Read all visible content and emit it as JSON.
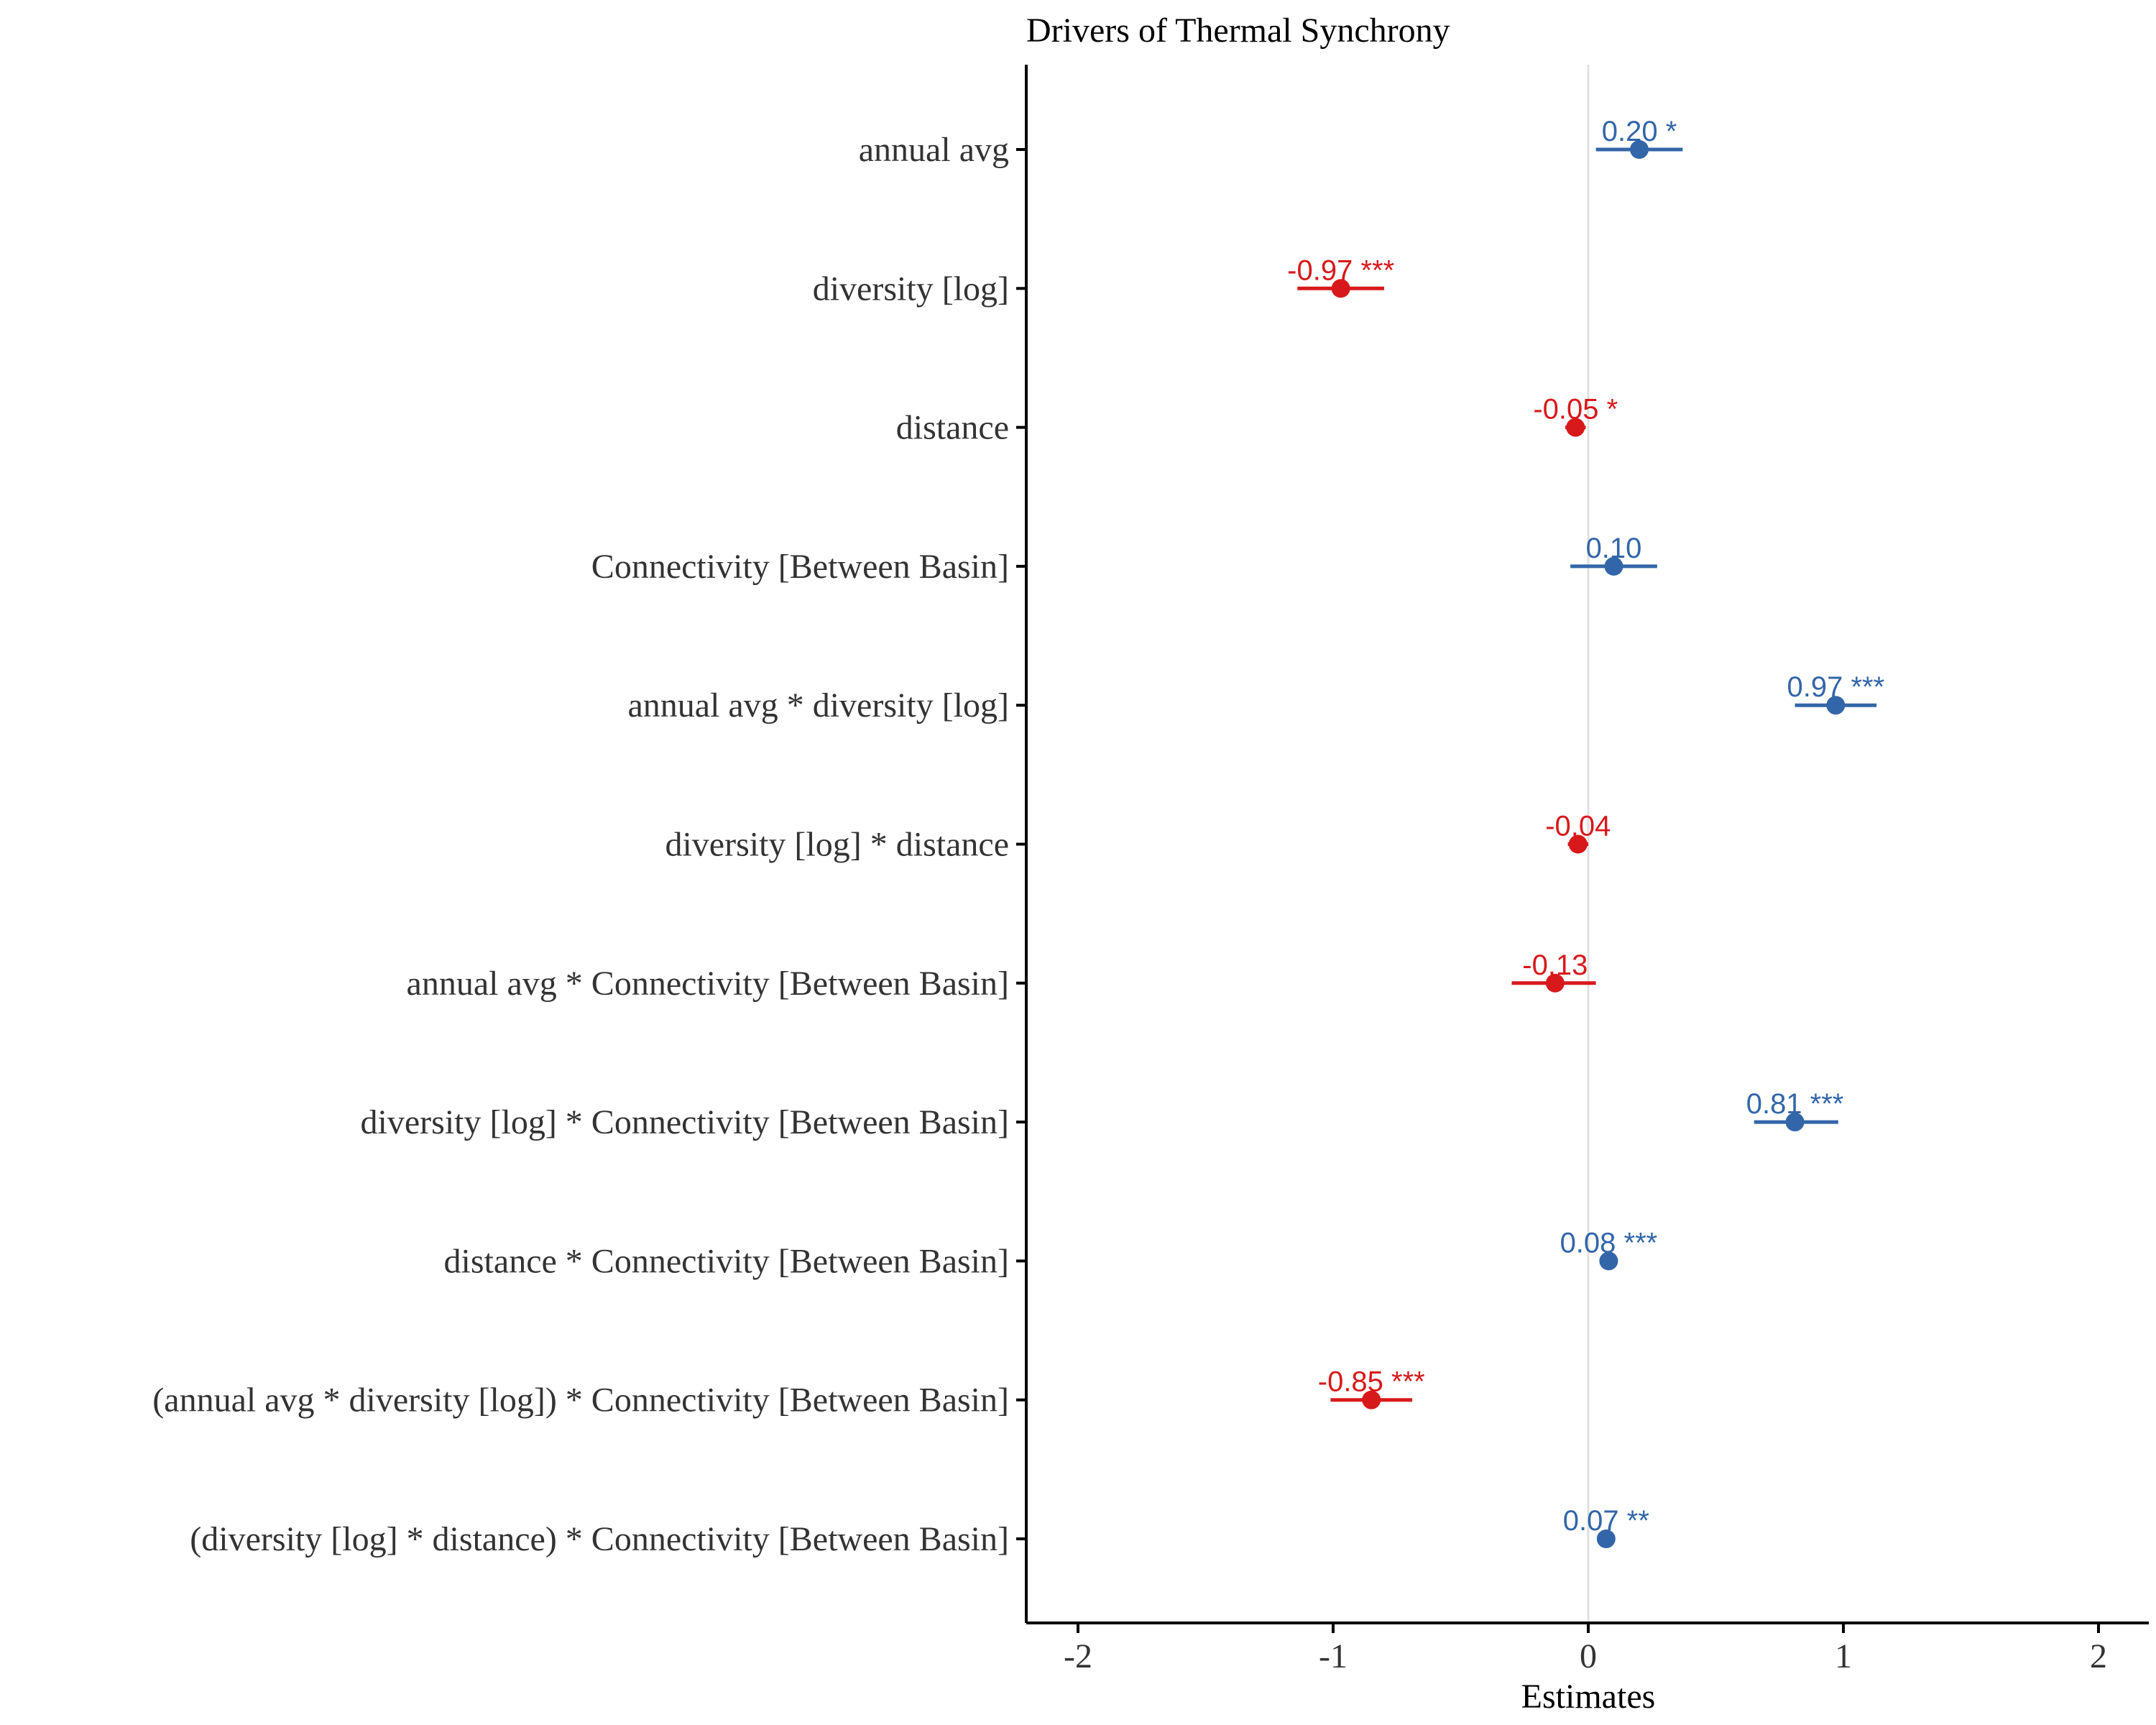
{
  "chart_data": {
    "type": "forest",
    "title": "Drivers of Thermal Synchrony",
    "xlabel": "Estimates",
    "ylabel": "",
    "xlim": [
      -2.2,
      2.2
    ],
    "xticks": [
      -2,
      -1,
      0,
      1,
      2
    ],
    "xtick_labels": [
      "-2",
      "-1",
      "0",
      "1",
      "2"
    ],
    "reference_line": 0,
    "grid": false,
    "colors": {
      "positive": "#3366a8",
      "negative": "#d7191c",
      "axis": "#000000",
      "zero_line": "#e0e0e0"
    },
    "terms": [
      {
        "label": "annual avg",
        "estimate": 0.2,
        "ci_low": 0.03,
        "ci_high": 0.37,
        "text": "0.20 *"
      },
      {
        "label": "diversity [log]",
        "estimate": -0.97,
        "ci_low": -1.14,
        "ci_high": -0.8,
        "text": "-0.97 ***"
      },
      {
        "label": "distance",
        "estimate": -0.05,
        "ci_low": -0.09,
        "ci_high": -0.01,
        "text": "-0.05 *"
      },
      {
        "label": "Connectivity [Between Basin]",
        "estimate": 0.1,
        "ci_low": -0.07,
        "ci_high": 0.27,
        "text": "0.10"
      },
      {
        "label": "annual avg * diversity [log]",
        "estimate": 0.97,
        "ci_low": 0.81,
        "ci_high": 1.13,
        "text": "0.97 ***"
      },
      {
        "label": "diversity [log] * distance",
        "estimate": -0.04,
        "ci_low": -0.08,
        "ci_high": 0.0,
        "text": "-0.04"
      },
      {
        "label": "annual avg * Connectivity [Between Basin]",
        "estimate": -0.13,
        "ci_low": -0.3,
        "ci_high": 0.03,
        "text": "-0.13"
      },
      {
        "label": "diversity [log] * Connectivity [Between Basin]",
        "estimate": 0.81,
        "ci_low": 0.65,
        "ci_high": 0.98,
        "text": "0.81 ***"
      },
      {
        "label": "distance * Connectivity [Between Basin]",
        "estimate": 0.08,
        "ci_low": 0.05,
        "ci_high": 0.11,
        "text": "0.08 ***"
      },
      {
        "label": "(annual avg * diversity [log]) * Connectivity [Between Basin]",
        "estimate": -0.85,
        "ci_low": -1.01,
        "ci_high": -0.69,
        "text": "-0.85 ***"
      },
      {
        "label": "(diversity [log] * distance) * Connectivity [Between Basin]",
        "estimate": 0.07,
        "ci_low": 0.04,
        "ci_high": 0.1,
        "text": "0.07 **"
      }
    ]
  }
}
